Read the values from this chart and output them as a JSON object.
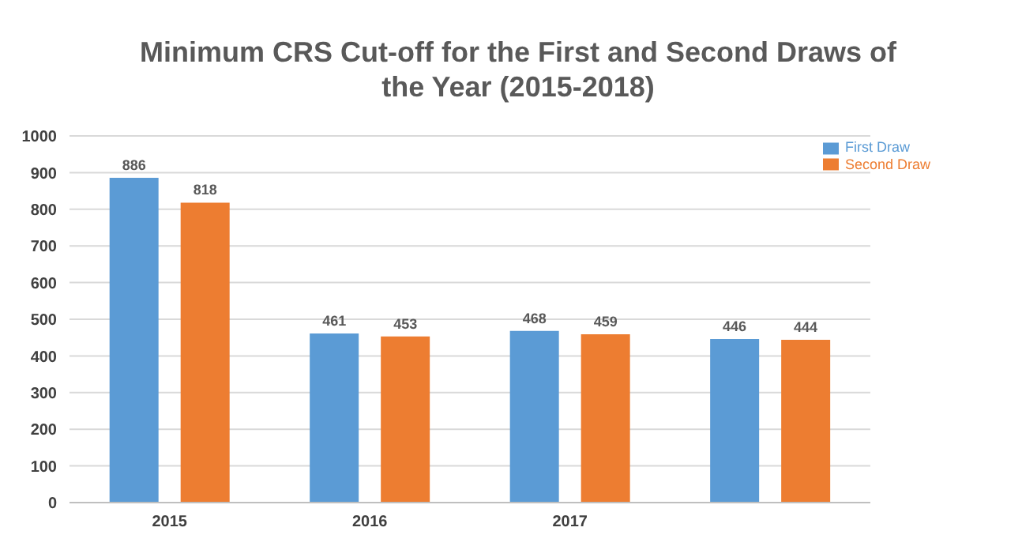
{
  "chart_data": {
    "type": "bar",
    "title": "Minimum CRS Cut-off for the First and Second Draws of the Year (2015-2018)",
    "categories": [
      "2015",
      "2016",
      "2017",
      null
    ],
    "series": [
      {
        "name": "First Draw",
        "color": "#5b9bd5",
        "values": [
          886,
          461,
          468,
          446
        ]
      },
      {
        "name": "Second Draw",
        "color": "#ed7d31",
        "values": [
          818,
          453,
          459,
          444
        ]
      }
    ],
    "ylim": [
      0,
      1000
    ],
    "yticks": [
      0,
      100,
      200,
      300,
      400,
      500,
      600,
      700,
      800,
      900,
      1000
    ],
    "grid": "y",
    "legend": "top right",
    "data_labels": true
  }
}
